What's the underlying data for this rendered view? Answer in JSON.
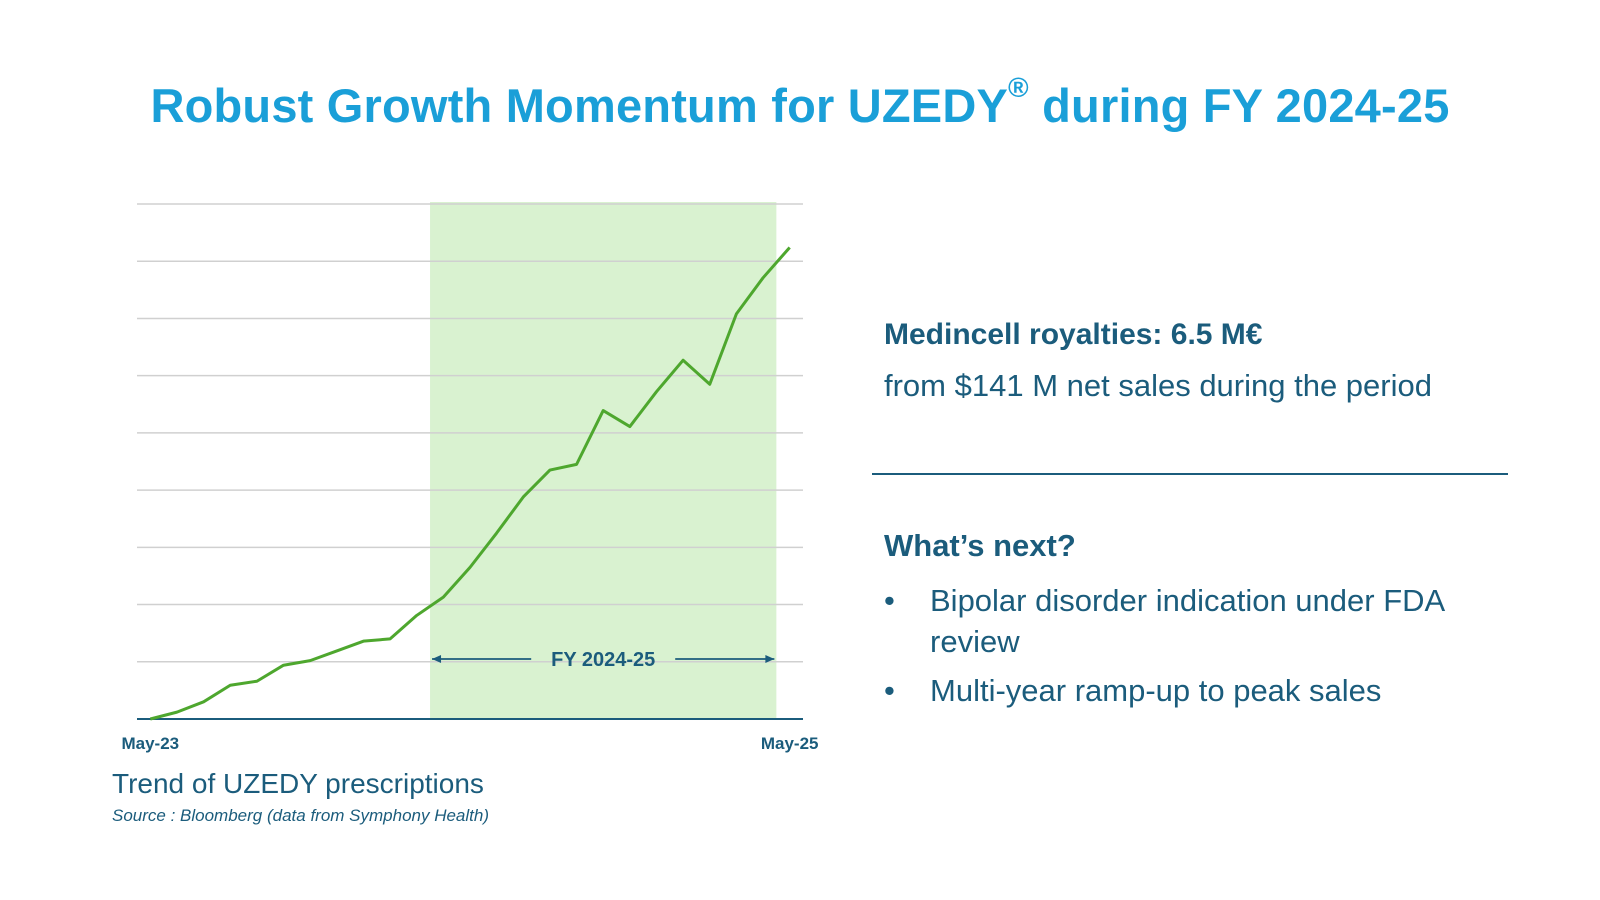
{
  "slide": {
    "title_main": "Robust Growth Momentum for UZEDY",
    "title_reg": "®",
    "title_tail": " during FY 2024-25"
  },
  "chart_data": {
    "type": "line",
    "title": "Trend of UZEDY prescriptions",
    "source": "Source : Bloomberg (data from Symphony Health)",
    "xlabel": "",
    "ylabel": "",
    "x_tick_labels": [
      "May-23",
      "May-25"
    ],
    "x": [
      "May-23",
      "Jun-23",
      "Jul-23",
      "Aug-23",
      "Sep-23",
      "Oct-23",
      "Nov-23",
      "Dec-23",
      "Jan-24",
      "Feb-24",
      "Mar-24",
      "Apr-24",
      "May-24",
      "Jun-24",
      "Jul-24",
      "Aug-24",
      "Sep-24",
      "Oct-24",
      "Nov-24",
      "Dec-24",
      "Jan-25",
      "Feb-25",
      "Mar-25",
      "Apr-25",
      "May-25"
    ],
    "series": [
      {
        "name": "UZEDY prescriptions",
        "color": "#4ea72e",
        "values": [
          0,
          1.2,
          3.0,
          5.9,
          6.6,
          9.4,
          10.2,
          11.9,
          13.6,
          14.0,
          18.1,
          21.3,
          26.5,
          32.5,
          38.8,
          43.5,
          44.5,
          53.9,
          51.1,
          57.2,
          62.7,
          58.5,
          70.8,
          77.1,
          82.4
        ]
      }
    ],
    "ylim": [
      0,
      90
    ],
    "y_gridlines": [
      10,
      20,
      30,
      40,
      50,
      60,
      70,
      80,
      90
    ],
    "highlight": {
      "label": "FY 2024-25",
      "x_start": 10.5,
      "x_end": 23.5,
      "color": "#d9f2d0"
    },
    "x_range": [
      -0.5,
      24.5
    ]
  },
  "royalties": {
    "heading": "Medincell royalties: 6.5 M€",
    "subtext": "from $141 M net sales during the period"
  },
  "next": {
    "heading": "What’s next?",
    "bullets": [
      {
        "marker": "•",
        "text": "Bipolar disorder indication under FDA review"
      },
      {
        "marker": "•",
        "text": "Multi-year ramp-up to peak sales"
      }
    ]
  },
  "colors": {
    "title": "#1a9fd8",
    "text": "#1b5c7c",
    "line": "#4ea72e",
    "grid": "#d0d0d0",
    "axis": "#1b5c7c"
  }
}
